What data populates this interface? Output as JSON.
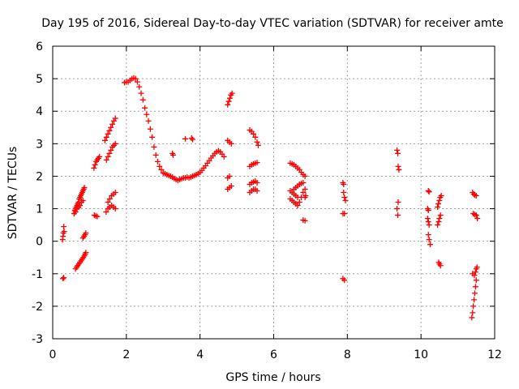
{
  "chart_data": {
    "type": "scatter",
    "title": "Day 195 of 2016, Sidereal Day-to-day VTEC variation (SDTVAR) for receiver amte",
    "xlabel": "GPS time / hours",
    "ylabel": "SDTVAR / TECUs",
    "xlim": [
      0,
      12
    ],
    "ylim": [
      -3,
      6
    ],
    "xticks": [
      0,
      2,
      4,
      6,
      8,
      10,
      12
    ],
    "yticks": [
      -3,
      -2,
      -1,
      0,
      1,
      2,
      3,
      4,
      5,
      6
    ],
    "grid": true,
    "marker": "plus",
    "color": "#ff0000",
    "series": [
      {
        "name": "SDTVAR",
        "points": [
          [
            0.27,
            0.05
          ],
          [
            0.28,
            0.15
          ],
          [
            0.29,
            0.25
          ],
          [
            0.31,
            0.3
          ],
          [
            0.3,
            0.45
          ],
          [
            0.28,
            -1.15
          ],
          [
            0.3,
            -1.12
          ],
          [
            0.58,
            0.85
          ],
          [
            0.6,
            0.95
          ],
          [
            0.62,
            1.0
          ],
          [
            0.64,
            1.05
          ],
          [
            0.66,
            1.1
          ],
          [
            0.68,
            1.15
          ],
          [
            0.7,
            1.2
          ],
          [
            0.72,
            1.3
          ],
          [
            0.74,
            1.35
          ],
          [
            0.76,
            1.4
          ],
          [
            0.78,
            1.45
          ],
          [
            0.8,
            1.5
          ],
          [
            0.82,
            1.55
          ],
          [
            0.84,
            1.6
          ],
          [
            0.86,
            1.65
          ],
          [
            0.62,
            0.9
          ],
          [
            0.66,
            1.0
          ],
          [
            0.7,
            1.05
          ],
          [
            0.74,
            1.1
          ],
          [
            0.78,
            1.2
          ],
          [
            0.82,
            1.25
          ],
          [
            0.62,
            -0.85
          ],
          [
            0.65,
            -0.8
          ],
          [
            0.68,
            -0.75
          ],
          [
            0.71,
            -0.7
          ],
          [
            0.74,
            -0.65
          ],
          [
            0.77,
            -0.6
          ],
          [
            0.8,
            -0.55
          ],
          [
            0.83,
            -0.5
          ],
          [
            0.86,
            -0.45
          ],
          [
            0.88,
            -0.4
          ],
          [
            0.9,
            -0.35
          ],
          [
            0.82,
            0.1
          ],
          [
            0.85,
            0.15
          ],
          [
            0.88,
            0.2
          ],
          [
            0.9,
            0.25
          ],
          [
            1.13,
            0.8
          ],
          [
            1.17,
            0.78
          ],
          [
            1.21,
            0.76
          ],
          [
            1.12,
            2.25
          ],
          [
            1.15,
            2.35
          ],
          [
            1.18,
            2.45
          ],
          [
            1.21,
            2.5
          ],
          [
            1.24,
            2.55
          ],
          [
            1.27,
            2.6
          ],
          [
            1.42,
            3.1
          ],
          [
            1.46,
            3.2
          ],
          [
            1.5,
            3.3
          ],
          [
            1.54,
            3.4
          ],
          [
            1.58,
            3.5
          ],
          [
            1.62,
            3.6
          ],
          [
            1.66,
            3.7
          ],
          [
            1.7,
            3.78
          ],
          [
            1.46,
            2.5
          ],
          [
            1.5,
            2.6
          ],
          [
            1.54,
            2.7
          ],
          [
            1.58,
            2.8
          ],
          [
            1.62,
            2.9
          ],
          [
            1.66,
            2.95
          ],
          [
            1.7,
            3.0
          ],
          [
            1.45,
            0.9
          ],
          [
            1.5,
            1.0
          ],
          [
            1.55,
            1.05
          ],
          [
            1.6,
            1.1
          ],
          [
            1.65,
            1.05
          ],
          [
            1.7,
            1.0
          ],
          [
            1.5,
            1.2
          ],
          [
            1.55,
            1.3
          ],
          [
            1.6,
            1.4
          ],
          [
            1.65,
            1.45
          ],
          [
            1.7,
            1.5
          ],
          [
            1.95,
            4.88
          ],
          [
            2.0,
            4.9
          ],
          [
            2.05,
            4.9
          ],
          [
            2.1,
            4.95
          ],
          [
            2.15,
            5.0
          ],
          [
            2.2,
            5.02
          ],
          [
            2.25,
            5.0
          ],
          [
            2.3,
            4.9
          ],
          [
            2.35,
            4.75
          ],
          [
            2.4,
            4.55
          ],
          [
            2.45,
            4.35
          ],
          [
            2.5,
            4.1
          ],
          [
            2.55,
            3.9
          ],
          [
            2.6,
            3.7
          ],
          [
            2.65,
            3.45
          ],
          [
            2.7,
            3.2
          ],
          [
            2.75,
            2.9
          ],
          [
            2.8,
            2.65
          ],
          [
            2.85,
            2.45
          ],
          [
            2.9,
            2.3
          ],
          [
            2.95,
            2.2
          ],
          [
            3.0,
            2.1
          ],
          [
            3.05,
            2.08
          ],
          [
            3.1,
            2.05
          ],
          [
            3.15,
            2.02
          ],
          [
            3.2,
            2.0
          ],
          [
            3.25,
            1.97
          ],
          [
            3.3,
            1.93
          ],
          [
            3.35,
            1.9
          ],
          [
            3.4,
            1.87
          ],
          [
            3.45,
            1.9
          ],
          [
            3.5,
            1.92
          ],
          [
            3.55,
            1.95
          ],
          [
            3.6,
            1.95
          ],
          [
            3.65,
            1.97
          ],
          [
            3.7,
            1.95
          ],
          [
            3.75,
            1.97
          ],
          [
            3.8,
            2.0
          ],
          [
            3.85,
            2.02
          ],
          [
            3.9,
            2.05
          ],
          [
            3.95,
            2.08
          ],
          [
            4.0,
            2.12
          ],
          [
            4.05,
            2.18
          ],
          [
            4.1,
            2.25
          ],
          [
            4.15,
            2.32
          ],
          [
            4.2,
            2.4
          ],
          [
            4.25,
            2.48
          ],
          [
            4.3,
            2.56
          ],
          [
            4.35,
            2.63
          ],
          [
            4.4,
            2.7
          ],
          [
            4.45,
            2.75
          ],
          [
            4.5,
            2.78
          ],
          [
            4.55,
            2.75
          ],
          [
            4.6,
            2.68
          ],
          [
            4.65,
            2.6
          ],
          [
            3.25,
            2.7
          ],
          [
            3.27,
            2.65
          ],
          [
            3.6,
            3.15
          ],
          [
            3.77,
            3.17
          ],
          [
            3.8,
            3.13
          ],
          [
            4.75,
            1.6
          ],
          [
            4.8,
            1.65
          ],
          [
            4.85,
            1.7
          ],
          [
            4.75,
            1.95
          ],
          [
            4.8,
            2.0
          ],
          [
            4.75,
            3.1
          ],
          [
            4.8,
            3.05
          ],
          [
            4.85,
            3.0
          ],
          [
            4.75,
            4.2
          ],
          [
            4.78,
            4.3
          ],
          [
            4.81,
            4.4
          ],
          [
            4.84,
            4.5
          ],
          [
            4.87,
            4.55
          ],
          [
            5.35,
            3.42
          ],
          [
            5.4,
            3.38
          ],
          [
            5.45,
            3.3
          ],
          [
            5.5,
            3.2
          ],
          [
            5.55,
            3.05
          ],
          [
            5.58,
            2.95
          ],
          [
            5.35,
            2.3
          ],
          [
            5.4,
            2.35
          ],
          [
            5.45,
            2.38
          ],
          [
            5.5,
            2.4
          ],
          [
            5.55,
            2.42
          ],
          [
            5.35,
            1.75
          ],
          [
            5.4,
            1.8
          ],
          [
            5.45,
            1.82
          ],
          [
            5.5,
            1.85
          ],
          [
            5.55,
            1.8
          ],
          [
            5.35,
            1.5
          ],
          [
            5.4,
            1.55
          ],
          [
            5.45,
            1.6
          ],
          [
            5.5,
            1.6
          ],
          [
            5.55,
            1.55
          ],
          [
            6.45,
            2.4
          ],
          [
            6.5,
            2.38
          ],
          [
            6.55,
            2.35
          ],
          [
            6.6,
            2.3
          ],
          [
            6.65,
            2.25
          ],
          [
            6.7,
            2.2
          ],
          [
            6.75,
            2.12
          ],
          [
            6.8,
            2.05
          ],
          [
            6.85,
            2.0
          ],
          [
            6.45,
            1.55
          ],
          [
            6.5,
            1.5
          ],
          [
            6.55,
            1.45
          ],
          [
            6.6,
            1.4
          ],
          [
            6.65,
            1.35
          ],
          [
            6.45,
            1.3
          ],
          [
            6.5,
            1.25
          ],
          [
            6.55,
            1.2
          ],
          [
            6.6,
            1.15
          ],
          [
            6.65,
            1.1
          ],
          [
            6.7,
            1.2
          ],
          [
            6.75,
            1.35
          ],
          [
            6.8,
            1.5
          ],
          [
            6.85,
            1.6
          ],
          [
            6.55,
            1.6
          ],
          [
            6.6,
            1.65
          ],
          [
            6.65,
            1.7
          ],
          [
            6.7,
            1.75
          ],
          [
            6.75,
            1.78
          ],
          [
            6.8,
            1.8
          ],
          [
            6.8,
            0.65
          ],
          [
            6.85,
            0.63
          ],
          [
            6.85,
            1.35
          ],
          [
            6.87,
            1.4
          ],
          [
            7.88,
            1.8
          ],
          [
            7.9,
            1.75
          ],
          [
            7.9,
            1.5
          ],
          [
            7.92,
            1.35
          ],
          [
            7.95,
            1.25
          ],
          [
            7.88,
            0.85
          ],
          [
            7.92,
            0.85
          ],
          [
            7.88,
            -1.15
          ],
          [
            7.92,
            -1.2
          ],
          [
            9.35,
            2.8
          ],
          [
            9.37,
            2.7
          ],
          [
            9.38,
            2.3
          ],
          [
            9.4,
            2.2
          ],
          [
            9.38,
            1.2
          ],
          [
            9.35,
            1.0
          ],
          [
            9.37,
            0.8
          ],
          [
            10.2,
            1.55
          ],
          [
            10.22,
            1.52
          ],
          [
            10.18,
            1.0
          ],
          [
            10.2,
            0.95
          ],
          [
            10.18,
            0.7
          ],
          [
            10.2,
            0.6
          ],
          [
            10.22,
            0.5
          ],
          [
            10.2,
            0.2
          ],
          [
            10.22,
            0.05
          ],
          [
            10.25,
            -0.1
          ],
          [
            10.45,
            1.05
          ],
          [
            10.47,
            1.15
          ],
          [
            10.5,
            1.25
          ],
          [
            10.52,
            1.35
          ],
          [
            10.55,
            1.4
          ],
          [
            10.45,
            0.5
          ],
          [
            10.48,
            0.6
          ],
          [
            10.5,
            0.7
          ],
          [
            10.53,
            0.8
          ],
          [
            10.48,
            -0.65
          ],
          [
            10.5,
            -0.7
          ],
          [
            10.53,
            -0.75
          ],
          [
            11.4,
            1.5
          ],
          [
            11.43,
            1.45
          ],
          [
            11.46,
            1.42
          ],
          [
            11.5,
            1.4
          ],
          [
            11.42,
            0.85
          ],
          [
            11.46,
            0.82
          ],
          [
            11.5,
            0.8
          ],
          [
            11.53,
            0.7
          ],
          [
            11.38,
            -2.35
          ],
          [
            11.4,
            -2.2
          ],
          [
            11.42,
            -2.0
          ],
          [
            11.44,
            -1.8
          ],
          [
            11.46,
            -1.6
          ],
          [
            11.48,
            -1.4
          ],
          [
            11.5,
            -1.2
          ],
          [
            11.45,
            -1.05
          ],
          [
            11.48,
            -0.95
          ],
          [
            11.5,
            -0.85
          ],
          [
            11.52,
            -0.8
          ],
          [
            11.4,
            -1.0
          ]
        ]
      }
    ]
  }
}
